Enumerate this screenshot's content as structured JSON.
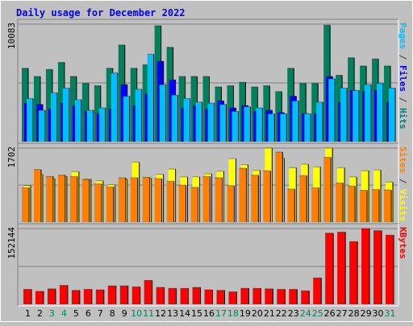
{
  "chart_data": {
    "type": "bar",
    "title": "Daily usage for December 2022",
    "categories": [
      "1",
      "2",
      "3",
      "4",
      "5",
      "6",
      "7",
      "8",
      "9",
      "10",
      "11",
      "12",
      "13",
      "14",
      "15",
      "16",
      "17",
      "18",
      "19",
      "20",
      "21",
      "22",
      "23",
      "24",
      "25",
      "26",
      "27",
      "28",
      "29",
      "30",
      "31"
    ],
    "weekend_days": [
      "3",
      "4",
      "10",
      "11",
      "17",
      "18",
      "24",
      "25",
      "31"
    ],
    "panels": [
      {
        "id": "hits-files-pages",
        "ymax_label": "10083",
        "ymax": 10083,
        "right_labels": [
          {
            "text": "Pages",
            "color": "#00bfff"
          },
          {
            "text": " / ",
            "color": "#404040"
          },
          {
            "text": "Files",
            "color": "#0000ff"
          },
          {
            "text": " / ",
            "color": "#404040"
          },
          {
            "text": "Hits",
            "color": "#008080"
          }
        ],
        "series": [
          {
            "name": "Hits",
            "color": "#00805c",
            "values": [
              6300,
              5600,
              6200,
              6800,
              5600,
              5000,
              4800,
              6300,
              8300,
              6300,
              6600,
              9950,
              8100,
              5600,
              5600,
              5600,
              4700,
              4800,
              5100,
              4700,
              4800,
              4300,
              6300,
              5000,
              5000,
              10000,
              5700,
              7200,
              6500,
              7100,
              6500
            ]
          },
          {
            "name": "Files",
            "color": "#0000ff",
            "values": [
              3300,
              3200,
              2800,
              3300,
              3100,
              2600,
              2400,
              2800,
              4900,
              3100,
              4100,
              6900,
              5300,
              2900,
              3100,
              2800,
              3500,
              2900,
              3100,
              2600,
              2700,
              2500,
              3900,
              2400,
              2400,
              5600,
              3400,
              4400,
              4300,
              4400,
              3400
            ]
          },
          {
            "name": "Pages",
            "color": "#00bfff",
            "values": [
              3700,
              2700,
              4200,
              4600,
              3600,
              2700,
              2900,
              5900,
              3900,
              4500,
              7500,
              4900,
              4000,
              3700,
              3400,
              3300,
              3200,
              2600,
              3000,
              2900,
              2400,
              2400,
              3500,
              2400,
              3400,
              5400,
              4600,
              4400,
              4900,
              5000,
              4600
            ]
          }
        ]
      },
      {
        "id": "visits-sites",
        "ymax_label": "1702",
        "ymax": 1702,
        "right_labels": [
          {
            "text": "Sites",
            "color": "#ff8000"
          },
          {
            "text": " / ",
            "color": "#404040"
          },
          {
            "text": "Visits",
            "color": "#ffff00"
          }
        ],
        "series": [
          {
            "name": "Visits",
            "color": "#ffff00",
            "values": [
              840,
              1100,
              1000,
              1050,
              1160,
              990,
              950,
              860,
              990,
              1380,
              1010,
              1100,
              1220,
              1040,
              1040,
              1110,
              1170,
              1460,
              1320,
              1190,
              1702,
              1470,
              1250,
              1330,
              1270,
              1702,
              1250,
              1040,
              1180,
              1200,
              920
            ]
          },
          {
            "name": "Sites",
            "color": "#ff8000",
            "values": [
              790,
              1210,
              1050,
              1080,
              1050,
              980,
              880,
              810,
              1020,
              1020,
              1030,
              1000,
              940,
              850,
              800,
              1050,
              1020,
              840,
              1240,
              1080,
              1180,
              1610,
              760,
              1070,
              790,
              1490,
              900,
              830,
              730,
              750,
              740
            ]
          }
        ]
      },
      {
        "id": "kbytes",
        "ymax_label": "152144",
        "ymax": 152144,
        "right_labels": [
          {
            "text": "KBytes",
            "color": "#ff0000"
          }
        ],
        "series": [
          {
            "name": "KBytes",
            "color": "#ff0000",
            "values": [
              30000,
              26000,
              31000,
              38000,
              28000,
              30000,
              29000,
              37000,
              37000,
              35000,
              48000,
              34000,
              32000,
              32000,
              34000,
              29000,
              28000,
              25000,
              32000,
              32000,
              31000,
              30000,
              30000,
              27000,
              53000,
              143000,
              145000,
              126000,
              152144,
              148000,
              139000
            ]
          }
        ]
      }
    ]
  }
}
